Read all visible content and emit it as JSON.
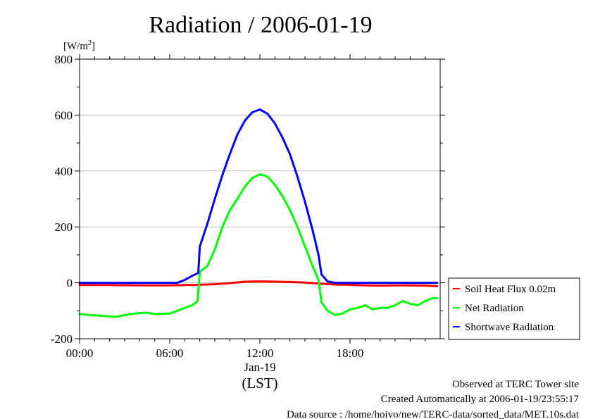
{
  "title": "Radiation / 2006-01-19",
  "y_unit": "[W/m",
  "y_unit_sup": "2",
  "y_unit_close": "]",
  "x_date_label": "Jan-19",
  "x_axis_label": "(LST)",
  "footer": {
    "line1": "Observed at TERC Tower site",
    "line2": "Created Automatically at 2006-01-19/23:55:17",
    "line3": "Data source : /home/hoivo/new/TERC-data/sorted_data/MET.10s.dat"
  },
  "chart_data": {
    "type": "line",
    "title": "Radiation / 2006-01-19",
    "ylabel": "[W/m2]",
    "xlabel": "(LST)",
    "xlim": [
      0,
      24
    ],
    "ylim": [
      -200,
      800
    ],
    "x_ticks": [
      0,
      6,
      12,
      18
    ],
    "x_tick_labels": [
      "00:00",
      "06:00",
      "12:00",
      "18:00"
    ],
    "y_ticks": [
      -200,
      0,
      200,
      400,
      600,
      800
    ],
    "y_tick_labels": [
      "-200",
      "0",
      "200",
      "400",
      "600",
      "800"
    ],
    "grid": true,
    "legend_position": "right, outside plot",
    "series": [
      {
        "name": "Soil Heat Flux 0.02m",
        "color": "#ff0000",
        "x": [
          0,
          2,
          4,
          6,
          7,
          8,
          9,
          10,
          11,
          12,
          13,
          14,
          15,
          16,
          17,
          18,
          19,
          20,
          21,
          22,
          23,
          23.8
        ],
        "y": [
          -8,
          -8,
          -9,
          -9,
          -8,
          -7,
          -5,
          -1,
          4,
          5,
          4,
          3,
          1,
          -3,
          -6,
          -7,
          -9,
          -10,
          -9,
          -9,
          -10,
          -12
        ]
      },
      {
        "name": "Net Radiation",
        "color": "#00ff00",
        "x": [
          0,
          1,
          2,
          2.5,
          3,
          4,
          4.5,
          5,
          6,
          6.5,
          7,
          7.5,
          7.85,
          8,
          8.5,
          9,
          9.5,
          10,
          10.5,
          11,
          11.5,
          12,
          12.5,
          13,
          13.5,
          14,
          14.5,
          15,
          15.5,
          15.9,
          16.1,
          16.5,
          17,
          17.5,
          18,
          18.5,
          19,
          19.5,
          20,
          20.5,
          21,
          21.5,
          22,
          22.5,
          23,
          23.5,
          23.8
        ],
        "y": [
          -112,
          -116,
          -120,
          -122,
          -115,
          -108,
          -107,
          -112,
          -110,
          -100,
          -90,
          -80,
          -65,
          40,
          60,
          120,
          200,
          260,
          300,
          345,
          375,
          388,
          380,
          350,
          310,
          260,
          200,
          130,
          60,
          10,
          -70,
          -100,
          -115,
          -110,
          -95,
          -90,
          -80,
          -95,
          -90,
          -90,
          -80,
          -65,
          -75,
          -80,
          -65,
          -55,
          -55
        ]
      },
      {
        "name": "Shortwave Radiation",
        "color": "#0000ff",
        "x": [
          0,
          2,
          4,
          6,
          6.5,
          7,
          7.5,
          7.9,
          8,
          8.5,
          9,
          9.5,
          10,
          10.5,
          11,
          11.5,
          12,
          12.5,
          13,
          13.5,
          14,
          14.5,
          15,
          15.5,
          15.9,
          16.1,
          16.5,
          17,
          18,
          19,
          20,
          21,
          22,
          23,
          23.8
        ],
        "y": [
          0,
          0,
          0,
          0,
          0,
          10,
          25,
          35,
          130,
          210,
          300,
          385,
          460,
          530,
          580,
          610,
          620,
          605,
          570,
          520,
          460,
          380,
          290,
          190,
          100,
          30,
          5,
          0,
          0,
          0,
          0,
          0,
          0,
          0,
          0
        ]
      }
    ]
  }
}
